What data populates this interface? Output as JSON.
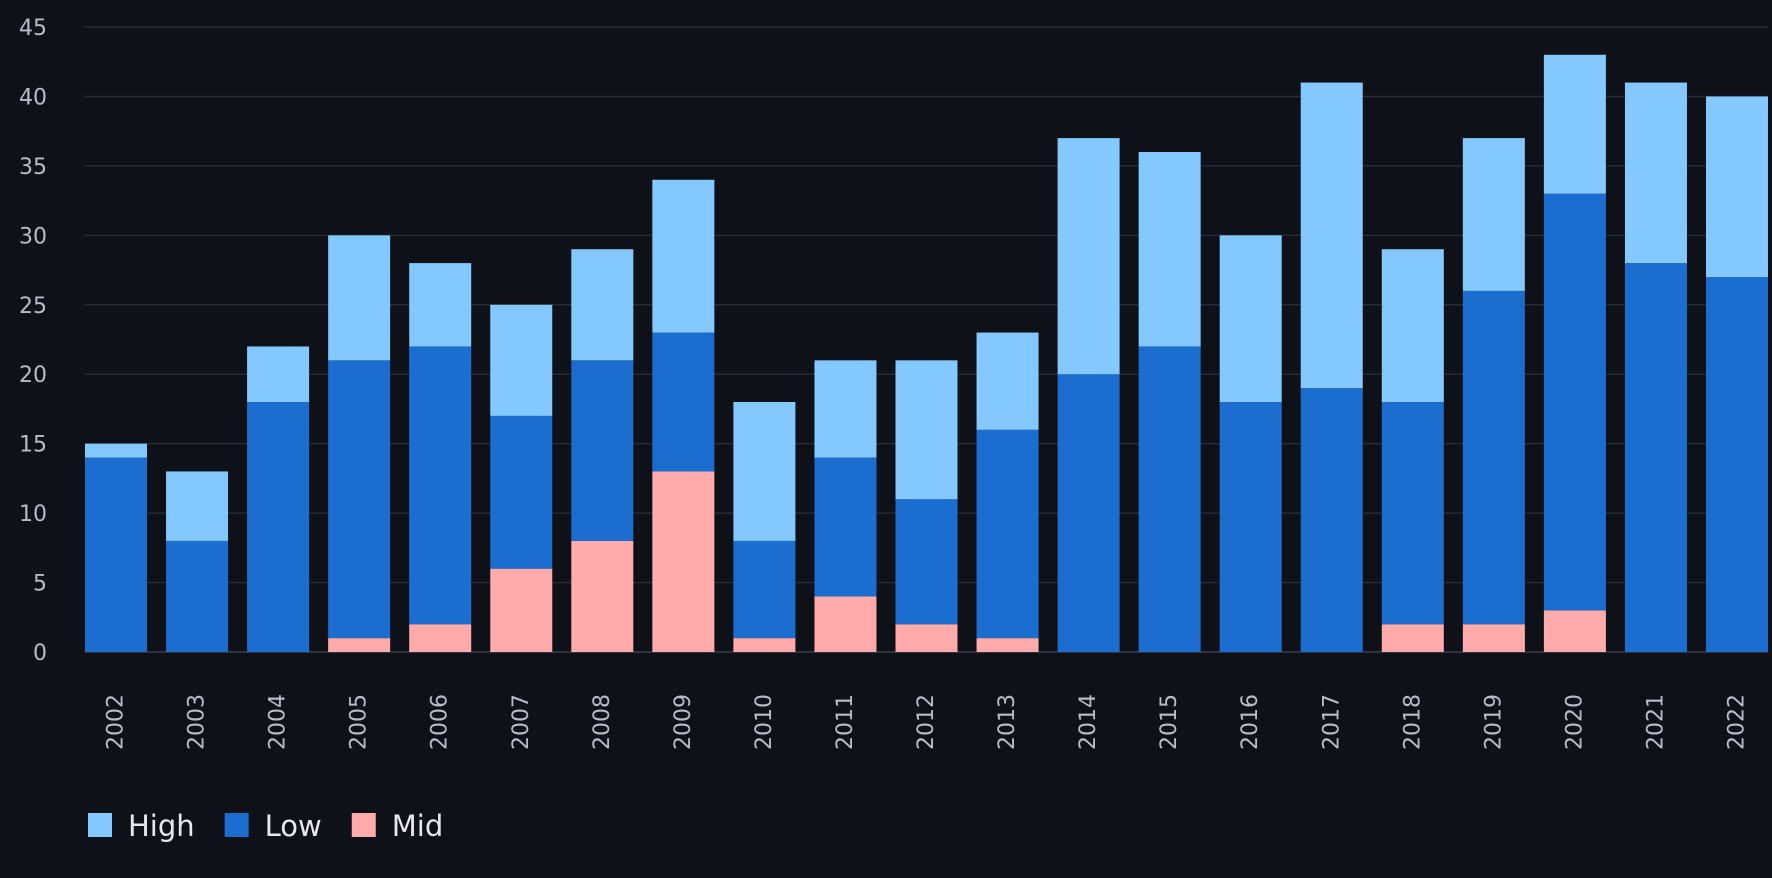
{
  "chart_data": {
    "type": "bar",
    "stacked": true,
    "categories": [
      "2002",
      "2003",
      "2004",
      "2005",
      "2006",
      "2007",
      "2008",
      "2009",
      "2010",
      "2011",
      "2012",
      "2013",
      "2014",
      "2015",
      "2016",
      "2017",
      "2018",
      "2019",
      "2020",
      "2021",
      "2022"
    ],
    "series": [
      {
        "name": "Mid",
        "color": "#ffabab",
        "values": [
          0,
          0,
          0,
          1,
          2,
          6,
          8,
          13,
          1,
          4,
          2,
          1,
          0,
          0,
          0,
          0,
          2,
          2,
          3,
          0,
          0
        ]
      },
      {
        "name": "Low",
        "color": "#1c6dd0",
        "values": [
          14,
          8,
          18,
          20,
          20,
          11,
          13,
          10,
          7,
          10,
          9,
          15,
          20,
          22,
          18,
          19,
          16,
          24,
          30,
          28,
          27
        ]
      },
      {
        "name": "High",
        "color": "#83c9ff",
        "values": [
          1,
          5,
          4,
          9,
          6,
          8,
          8,
          11,
          10,
          7,
          10,
          7,
          17,
          14,
          12,
          22,
          11,
          11,
          10,
          13,
          13
        ]
      }
    ],
    "legend": [
      {
        "name": "High",
        "color": "#83c9ff"
      },
      {
        "name": "Low",
        "color": "#1c6dd0"
      },
      {
        "name": "Mid",
        "color": "#ffabab"
      }
    ],
    "legend_position": "bottom-left",
    "ylim": [
      0,
      45
    ],
    "yticks": [
      0,
      5,
      10,
      15,
      20,
      25,
      30,
      35,
      40,
      45
    ],
    "grid": true,
    "title": "",
    "xlabel": "",
    "ylabel": ""
  }
}
